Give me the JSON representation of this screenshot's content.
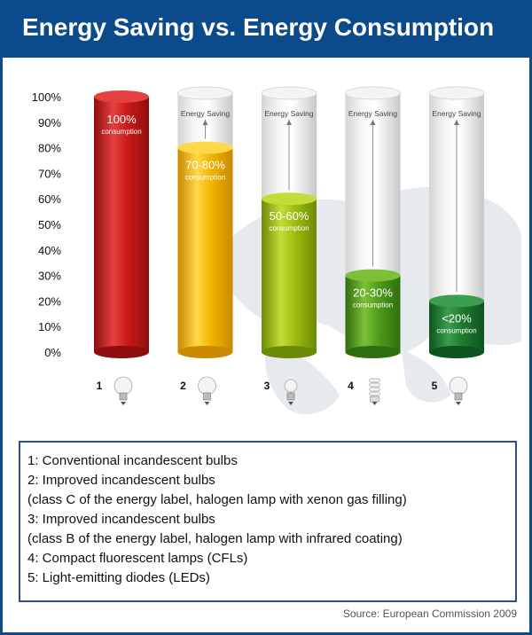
{
  "header": {
    "title": "Energy Saving vs. Energy Consumption"
  },
  "chart_data": {
    "type": "bar",
    "categories": [
      "1",
      "2",
      "3",
      "4",
      "5"
    ],
    "values": [
      100,
      80,
      60,
      30,
      20
    ],
    "ylim": [
      0,
      100
    ],
    "yticks": [
      "0%",
      "10%",
      "20%",
      "30%",
      "40%",
      "50%",
      "60%",
      "70%",
      "80%",
      "90%",
      "100%"
    ],
    "bar_labels": [
      "100%",
      "70-80%",
      "50-60%",
      "20-30%",
      "<20%"
    ],
    "bar_sublabel": "consumption",
    "saving_label": "Energy Saving",
    "colors": [
      "#cc1a1a",
      "#f0b400",
      "#9fbe10",
      "#4f9d1b",
      "#1f7a2e"
    ],
    "colors_light": [
      "#e54040",
      "#ffd84a",
      "#c4dc38",
      "#7cc038",
      "#3a9e4c"
    ],
    "colors_dark": [
      "#8e0e0e",
      "#c98a00",
      "#6b8a06",
      "#2f6e0f",
      "#0e5420"
    ]
  },
  "legend": {
    "lines": [
      "1:  Conventional incandescent bulbs",
      "2:  Improved incandescent bulbs",
      "      (class C of the energy label, halogen lamp with xenon gas filling)",
      "3:  Improved incandescent bulbs",
      "      (class B of the energy label, halogen lamp with infrared coating)",
      "4:  Compact fluorescent lamps (CFLs)",
      "5:  Light-emitting diodes (LEDs)"
    ]
  },
  "source": "Source: European Commission 2009"
}
